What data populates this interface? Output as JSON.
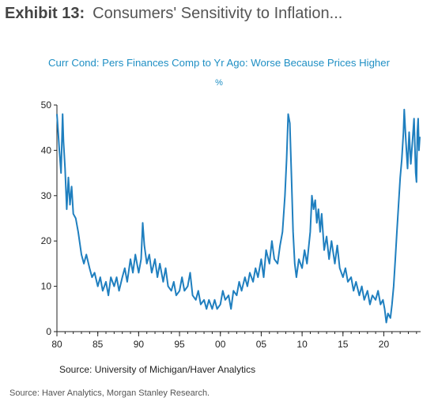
{
  "header": {
    "exhibit_label": "Exhibit 13:",
    "exhibit_title": "Consumers' Sensitivity to Inflation..."
  },
  "footer": {
    "chart_source": "Source:  University of Michigan/Haver Analytics",
    "report_source": "Source: Haver Analytics, Morgan Stanley Research."
  },
  "colors": {
    "line": "#1f7fbf",
    "title": "#1f8fc4",
    "axis": "#222222"
  },
  "chart_data": {
    "type": "line",
    "title": "Curr Cond: Pers Finances Comp to Yr Ago: Worse Because Prices Higher",
    "ylabel": "%",
    "xlabel": "",
    "xlim": [
      1980,
      2024.5
    ],
    "ylim": [
      0,
      50
    ],
    "yticks": [
      0,
      10,
      20,
      30,
      40,
      50
    ],
    "xticks": [
      {
        "value": 1980,
        "label": "80"
      },
      {
        "value": 1985,
        "label": "85"
      },
      {
        "value": 1990,
        "label": "90"
      },
      {
        "value": 1995,
        "label": "95"
      },
      {
        "value": 2000,
        "label": "00"
      },
      {
        "value": 2005,
        "label": "05"
      },
      {
        "value": 2010,
        "label": "10"
      },
      {
        "value": 2015,
        "label": "15"
      },
      {
        "value": 2020,
        "label": "20"
      }
    ],
    "grid": false,
    "legend": "none",
    "series": [
      {
        "values": [
          [
            1980.0,
            48
          ],
          [
            1980.15,
            44
          ],
          [
            1980.3,
            40
          ],
          [
            1980.5,
            35
          ],
          [
            1980.7,
            48
          ],
          [
            1980.8,
            42
          ],
          [
            1981.0,
            36
          ],
          [
            1981.2,
            27
          ],
          [
            1981.4,
            34
          ],
          [
            1981.6,
            28
          ],
          [
            1981.8,
            32
          ],
          [
            1982.0,
            26
          ],
          [
            1982.3,
            25
          ],
          [
            1982.6,
            22
          ],
          [
            1983.0,
            17
          ],
          [
            1983.3,
            15
          ],
          [
            1983.6,
            17
          ],
          [
            1984.0,
            14
          ],
          [
            1984.3,
            12
          ],
          [
            1984.6,
            13
          ],
          [
            1985.0,
            10
          ],
          [
            1985.3,
            12
          ],
          [
            1985.6,
            9
          ],
          [
            1986.0,
            11
          ],
          [
            1986.3,
            8
          ],
          [
            1986.6,
            12
          ],
          [
            1987.0,
            10
          ],
          [
            1987.3,
            12
          ],
          [
            1987.6,
            9
          ],
          [
            1988.0,
            12
          ],
          [
            1988.3,
            14
          ],
          [
            1988.6,
            11
          ],
          [
            1989.0,
            16
          ],
          [
            1989.3,
            13
          ],
          [
            1989.6,
            17
          ],
          [
            1990.0,
            13
          ],
          [
            1990.3,
            16
          ],
          [
            1990.5,
            24
          ],
          [
            1990.7,
            19
          ],
          [
            1991.0,
            15
          ],
          [
            1991.3,
            17
          ],
          [
            1991.6,
            13
          ],
          [
            1992.0,
            16
          ],
          [
            1992.3,
            12
          ],
          [
            1992.6,
            15
          ],
          [
            1993.0,
            11
          ],
          [
            1993.3,
            14
          ],
          [
            1993.6,
            10
          ],
          [
            1994.0,
            9
          ],
          [
            1994.3,
            11
          ],
          [
            1994.6,
            8
          ],
          [
            1995.0,
            9
          ],
          [
            1995.3,
            12
          ],
          [
            1995.6,
            9
          ],
          [
            1996.0,
            10
          ],
          [
            1996.3,
            13
          ],
          [
            1996.6,
            8
          ],
          [
            1997.0,
            7
          ],
          [
            1997.3,
            9
          ],
          [
            1997.6,
            6
          ],
          [
            1998.0,
            7
          ],
          [
            1998.3,
            5
          ],
          [
            1998.6,
            7
          ],
          [
            1999.0,
            5
          ],
          [
            1999.3,
            7
          ],
          [
            1999.6,
            5
          ],
          [
            2000.0,
            6
          ],
          [
            2000.3,
            9
          ],
          [
            2000.6,
            7
          ],
          [
            2001.0,
            8
          ],
          [
            2001.3,
            5
          ],
          [
            2001.6,
            9
          ],
          [
            2002.0,
            8
          ],
          [
            2002.3,
            11
          ],
          [
            2002.6,
            9
          ],
          [
            2003.0,
            12
          ],
          [
            2003.3,
            10
          ],
          [
            2003.6,
            13
          ],
          [
            2004.0,
            11
          ],
          [
            2004.3,
            14
          ],
          [
            2004.6,
            12
          ],
          [
            2005.0,
            16
          ],
          [
            2005.3,
            12
          ],
          [
            2005.6,
            18
          ],
          [
            2006.0,
            15
          ],
          [
            2006.3,
            20
          ],
          [
            2006.6,
            16
          ],
          [
            2007.0,
            15
          ],
          [
            2007.3,
            19
          ],
          [
            2007.6,
            22
          ],
          [
            2007.9,
            30
          ],
          [
            2008.1,
            38
          ],
          [
            2008.3,
            48
          ],
          [
            2008.5,
            46
          ],
          [
            2008.7,
            34
          ],
          [
            2008.9,
            22
          ],
          [
            2009.1,
            15
          ],
          [
            2009.3,
            12
          ],
          [
            2009.6,
            16
          ],
          [
            2010.0,
            14
          ],
          [
            2010.3,
            18
          ],
          [
            2010.6,
            15
          ],
          [
            2011.0,
            22
          ],
          [
            2011.2,
            30
          ],
          [
            2011.4,
            27
          ],
          [
            2011.6,
            29
          ],
          [
            2011.8,
            24
          ],
          [
            2012.0,
            27
          ],
          [
            2012.2,
            22
          ],
          [
            2012.4,
            26
          ],
          [
            2012.7,
            18
          ],
          [
            2013.0,
            21
          ],
          [
            2013.3,
            16
          ],
          [
            2013.6,
            20
          ],
          [
            2014.0,
            15
          ],
          [
            2014.3,
            19
          ],
          [
            2014.6,
            14
          ],
          [
            2015.0,
            12
          ],
          [
            2015.3,
            14
          ],
          [
            2015.6,
            11
          ],
          [
            2016.0,
            12
          ],
          [
            2016.3,
            9
          ],
          [
            2016.6,
            11
          ],
          [
            2017.0,
            8
          ],
          [
            2017.3,
            10
          ],
          [
            2017.6,
            7
          ],
          [
            2018.0,
            9
          ],
          [
            2018.3,
            6
          ],
          [
            2018.6,
            8
          ],
          [
            2019.0,
            7
          ],
          [
            2019.3,
            9
          ],
          [
            2019.6,
            6
          ],
          [
            2019.9,
            7
          ],
          [
            2020.1,
            5
          ],
          [
            2020.3,
            2
          ],
          [
            2020.5,
            4
          ],
          [
            2020.8,
            3
          ],
          [
            2021.0,
            6
          ],
          [
            2021.2,
            10
          ],
          [
            2021.4,
            16
          ],
          [
            2021.6,
            22
          ],
          [
            2021.8,
            28
          ],
          [
            2022.0,
            34
          ],
          [
            2022.2,
            38
          ],
          [
            2022.4,
            44
          ],
          [
            2022.5,
            49
          ],
          [
            2022.7,
            42
          ],
          [
            2022.9,
            36
          ],
          [
            2023.1,
            44
          ],
          [
            2023.3,
            37
          ],
          [
            2023.5,
            42
          ],
          [
            2023.7,
            47
          ],
          [
            2023.9,
            35
          ],
          [
            2024.0,
            33
          ],
          [
            2024.1,
            44
          ],
          [
            2024.2,
            47
          ],
          [
            2024.3,
            40
          ],
          [
            2024.4,
            43
          ]
        ]
      }
    ]
  }
}
